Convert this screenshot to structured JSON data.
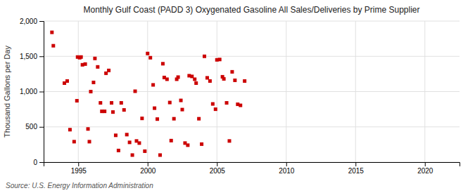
{
  "chart_data": {
    "type": "scatter",
    "title": "Monthly Gulf Coast (PADD 3) Oxygenated Gasoline All Sales/Deliveries by Prime Supplier",
    "ylabel": "Thousand Gallons per Day",
    "source": "Source: U.S. Energy Information Administration",
    "color": "#cc0000",
    "marker": "square",
    "grid": true,
    "xlim": [
      1992.5,
      2022.5
    ],
    "ylim": [
      0,
      2000
    ],
    "xticks": [
      1995,
      2000,
      2005,
      2010,
      2015,
      2020
    ],
    "yticks": [
      0,
      {
        "value": 500,
        "label": "500"
      },
      {
        "value": 1000,
        "label": "1,000"
      },
      {
        "value": 1500,
        "label": "1,500"
      },
      {
        "value": 2000,
        "label": "2,000"
      }
    ],
    "x": [
      1993.1,
      1993.2,
      1994.0,
      1994.2,
      1994.4,
      1994.7,
      1994.9,
      1994.95,
      1995.1,
      1995.2,
      1995.3,
      1995.5,
      1995.7,
      1995.8,
      1995.9,
      1996.1,
      1996.2,
      1996.4,
      1996.6,
      1996.7,
      1996.9,
      1997.0,
      1997.2,
      1997.4,
      1997.5,
      1997.7,
      1997.9,
      1998.1,
      1998.3,
      1998.5,
      1998.7,
      1998.9,
      1999.1,
      1999.2,
      1999.4,
      1999.6,
      1999.8,
      2000.0,
      2000.2,
      2000.4,
      2000.5,
      2000.7,
      2000.9,
      2001.1,
      2001.2,
      2001.4,
      2001.6,
      2001.7,
      2001.9,
      2002.1,
      2002.2,
      2002.4,
      2002.5,
      2002.7,
      2002.9,
      2003.0,
      2003.2,
      2003.4,
      2003.5,
      2003.7,
      2003.9,
      2004.1,
      2004.3,
      2004.5,
      2004.7,
      2004.9,
      2005.0,
      2005.2,
      2005.4,
      2005.5,
      2005.7,
      2005.9,
      2006.1,
      2006.3,
      2006.5,
      2006.7,
      2007.0
    ],
    "values": [
      1840,
      1650,
      1120,
      1150,
      460,
      290,
      870,
      1490,
      1480,
      1490,
      1380,
      1390,
      470,
      290,
      1000,
      1130,
      1470,
      1350,
      840,
      720,
      720,
      1260,
      1300,
      840,
      710,
      380,
      165,
      840,
      740,
      390,
      280,
      100,
      1005,
      300,
      270,
      620,
      155,
      1540,
      1480,
      1095,
      765,
      610,
      100,
      1395,
      1200,
      1175,
      845,
      305,
      615,
      1175,
      1205,
      875,
      745,
      270,
      240,
      1225,
      1215,
      1175,
      1120,
      615,
      255,
      1500,
      1195,
      1150,
      825,
      750,
      1450,
      1455,
      1210,
      1180,
      840,
      300,
      1280,
      1160,
      820,
      805,
      1150
    ]
  }
}
